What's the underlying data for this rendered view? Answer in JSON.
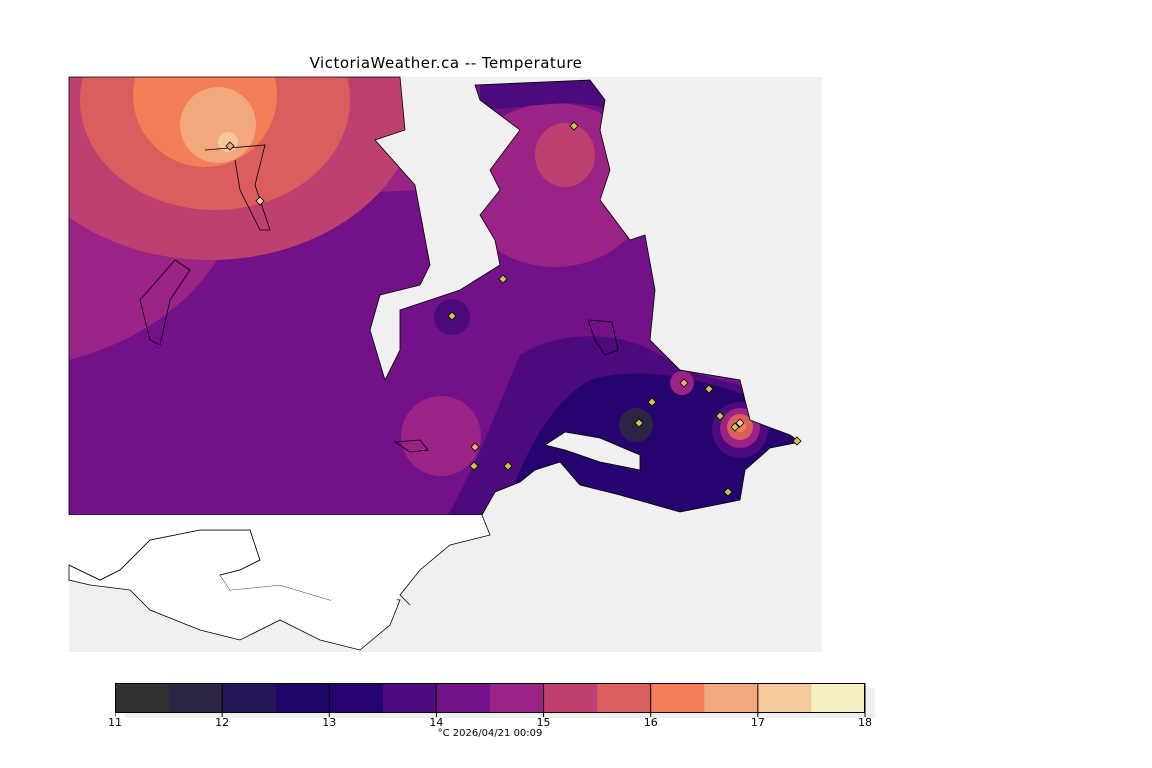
{
  "title": "VictoriaWeather.ca -- Temperature",
  "caption": "°C  2026/04/21 00:09",
  "chart_data": {
    "type": "heatmap",
    "title": "VictoriaWeather.ca -- Temperature",
    "units": "°C",
    "timestamp": "2026/04/21 00:09",
    "colorbar": {
      "ticks": [
        "11",
        "12",
        "13",
        "14",
        "15",
        "16",
        "17",
        "18"
      ],
      "range": [
        11,
        18
      ],
      "step": 0.5,
      "colors": [
        "#323232",
        "#2b2445",
        "#261858",
        "#1f076a",
        "#26046f",
        "#4c0a7c",
        "#731189",
        "#9b2385",
        "#bd4070",
        "#d95e5d",
        "#f37e57",
        "#f2a77c",
        "#f5c99e",
        "#f6efc1"
      ]
    },
    "features": {
      "station_markers": 17,
      "hotspot_max": "about 17",
      "coldspot_min": "about 12.5"
    }
  }
}
